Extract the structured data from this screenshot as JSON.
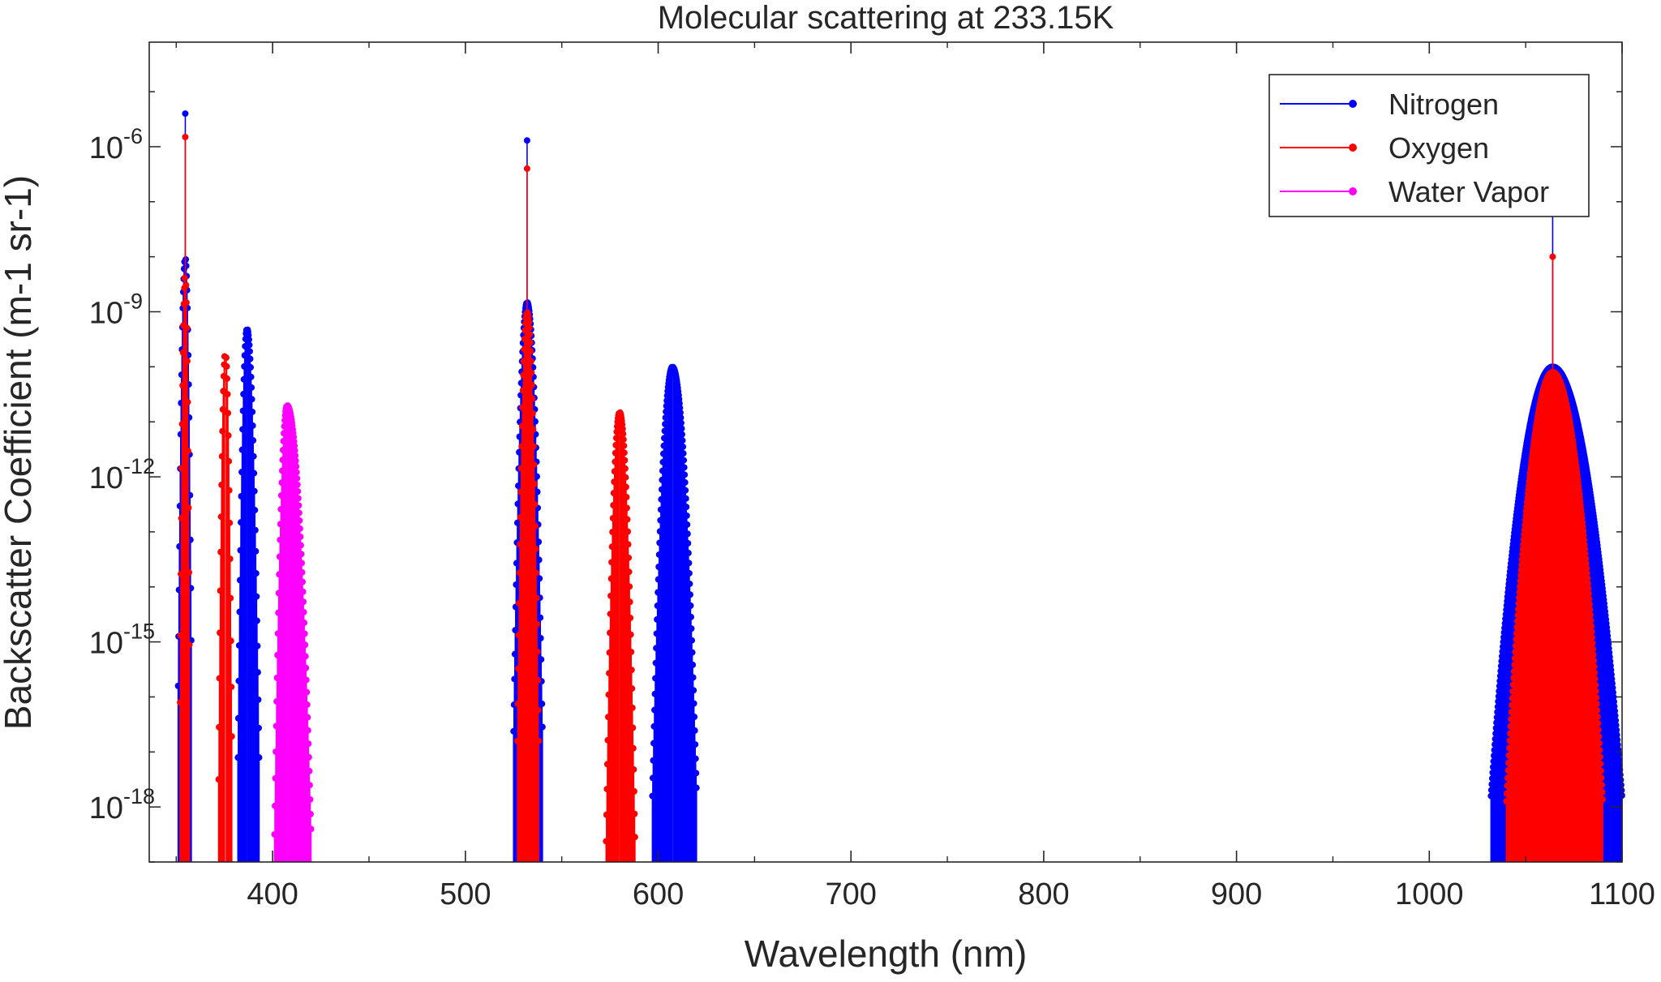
{
  "chart_data": {
    "type": "line",
    "title": "Molecular scattering at 233.15K",
    "xlabel": "Wavelength (nm)",
    "ylabel": "Backscatter Coefficient (m-1 sr-1)",
    "xlim": [
      336,
      1100
    ],
    "ylog": true,
    "ylim_exponent": [
      -19,
      -4.1
    ],
    "x_ticks": [
      400,
      500,
      600,
      700,
      800,
      900,
      1000,
      1100
    ],
    "y_ticks": [
      {
        "exp": -18,
        "label": "10",
        "sup": "-18"
      },
      {
        "exp": -15,
        "label": "10",
        "sup": "-15"
      },
      {
        "exp": -12,
        "label": "10",
        "sup": "-12"
      },
      {
        "exp": -9,
        "label": "10",
        "sup": "-9"
      },
      {
        "exp": -6,
        "label": "10",
        "sup": "-6"
      }
    ],
    "grid": false,
    "legend_position": "top-right",
    "series": [
      {
        "name": "Nitrogen",
        "color": "#0000ff",
        "style": "stem with dot markers",
        "lines": [
          {
            "center": 354.7,
            "peak": 4e-06,
            "kind": "rayleigh"
          },
          {
            "center": 354.7,
            "peak": 1e-08,
            "kind": "band",
            "range": [
              351,
              358
            ]
          },
          {
            "center": 386.7,
            "peak": 5e-10,
            "kind": "band",
            "range": [
              382,
              393
            ]
          },
          {
            "center": 532.0,
            "peak": 1.3e-06,
            "kind": "rayleigh"
          },
          {
            "center": 532.0,
            "peak": 1.5e-09,
            "kind": "band",
            "range": [
              525,
              540
            ]
          },
          {
            "center": 607.4,
            "peak": 1e-10,
            "kind": "band",
            "range": [
              597,
              620
            ]
          },
          {
            "center": 1064.0,
            "peak": 3e-07,
            "kind": "rayleigh"
          },
          {
            "center": 1064.0,
            "peak": 1e-10,
            "kind": "band",
            "range": [
              1032,
              1100
            ]
          }
        ]
      },
      {
        "name": "Oxygen",
        "color": "#ff0000",
        "style": "stem with dot markers",
        "lines": [
          {
            "center": 354.7,
            "peak": 1.5e-06,
            "kind": "rayleigh"
          },
          {
            "center": 354.7,
            "peak": 5e-09,
            "kind": "band",
            "range": [
              352,
              357
            ]
          },
          {
            "center": 375.5,
            "peak": 2e-10,
            "kind": "band",
            "range": [
              372,
              379
            ]
          },
          {
            "center": 532.0,
            "peak": 4e-07,
            "kind": "rayleigh"
          },
          {
            "center": 532.0,
            "peak": 1e-09,
            "kind": "band",
            "range": [
              527,
              538
            ]
          },
          {
            "center": 580.0,
            "peak": 1.5e-11,
            "kind": "band",
            "range": [
              573,
              588
            ]
          },
          {
            "center": 1064.0,
            "peak": 1e-08,
            "kind": "rayleigh"
          },
          {
            "center": 1064.0,
            "peak": 8e-11,
            "kind": "band",
            "range": [
              1040,
              1090
            ]
          }
        ]
      },
      {
        "name": "Water Vapor",
        "color": "#ff00ff",
        "style": "stem with dot markers",
        "lines": [
          {
            "center": 407.5,
            "peak": 2e-11,
            "kind": "band",
            "range": [
              401,
              420
            ]
          }
        ]
      }
    ]
  }
}
